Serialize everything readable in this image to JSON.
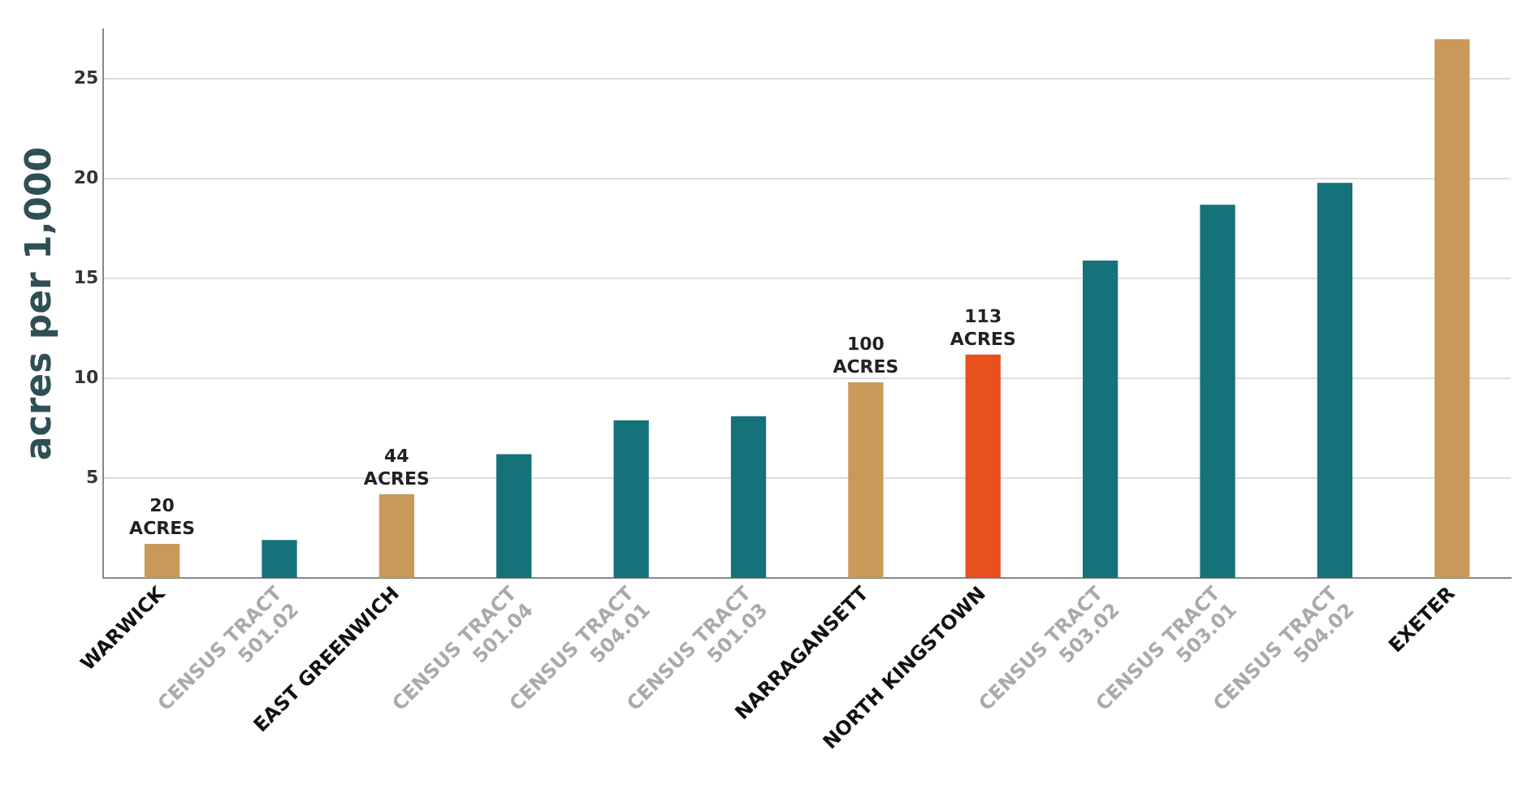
{
  "chart_data": {
    "type": "bar",
    "ylabel": "acres per 1,000",
    "categories": [
      "WARWICK",
      "CENSUS TRACT 501.02",
      "EAST GREENWICH",
      "CENSUS TRACT 501.04",
      "CENSUS TRACT 504.01",
      "CENSUS TRACT 501.03",
      "NARRAGANSETT",
      "NORTH KINGSTOWN",
      "CENSUS TRACT 503.02",
      "CENSUS TRACT 503.01",
      "CENSUS TRACT 504.02",
      "EXETER"
    ],
    "values": [
      1.7,
      1.9,
      4.2,
      6.2,
      7.9,
      8.1,
      9.8,
      11.2,
      15.9,
      18.7,
      19.8,
      27
    ],
    "colors": [
      "#c9995a",
      "#16727a",
      "#c9995a",
      "#16727a",
      "#16727a",
      "#16727a",
      "#c9995a",
      "#e8501e",
      "#16727a",
      "#16727a",
      "#16727a",
      "#c9995a"
    ],
    "annotations": [
      {
        "text": "20 ACRES",
        "x": "WARWICK",
        "y": 1.7
      },
      {
        "text": "44 ACRES",
        "x": "EAST GREENWICH",
        "y": 4.2
      },
      {
        "text": "100 ACRES",
        "x": "NARRAGANSETT",
        "y": 9.8
      },
      {
        "text": "113 ACRES",
        "x": "NORTH KINGSTOWN",
        "y": 11.2
      }
    ],
    "ylim": [
      0,
      27.5
    ],
    "yticks": [
      5,
      10,
      15,
      20,
      25
    ],
    "grid": "y",
    "legend": false
  }
}
